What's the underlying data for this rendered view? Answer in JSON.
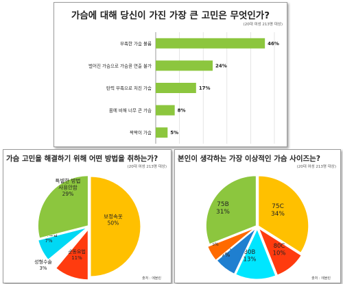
{
  "chart_data": [
    {
      "type": "bar",
      "orientation": "horizontal",
      "title": "가슴에 대해 당신이 가진 가장 큰 고민은 무엇인가?",
      "subtitle": "(20대 여성 213명 대상)",
      "categories": [
        "부족한 가슴 볼륨",
        "벌어진 가슴으로 가슴골 연출 불가",
        "탄력 부족으로 처진 가슴",
        "몸에 비해 너무 큰 가슴",
        "짝짝이 가슴"
      ],
      "value_labels": [
        "46%",
        "24%",
        "17%",
        "8%",
        "5%"
      ],
      "values": [
        46,
        24,
        17,
        8,
        5
      ],
      "xlim": [
        0,
        50
      ],
      "grid": true,
      "colors": {
        "bar": "#8cc63e"
      }
    },
    {
      "type": "pie",
      "title": "가슴 고민을 해결하기 위해 어떤 방법을 취하는가?",
      "subtitle": "(20대 여성 213명 대상)",
      "source": "출처 : 에블린",
      "slices": [
        {
          "label": "보정속옷",
          "pct_label": "50%",
          "value": 50,
          "color": "#ffc000"
        },
        {
          "label": "운동요법",
          "pct_label": "11%",
          "value": 11,
          "color": "#ff3b0f"
        },
        {
          "label": "성형수술",
          "pct_label": "3%",
          "value": 3,
          "color": "#ffffff"
        },
        {
          "label": "식이요법",
          "pct_label": "7%",
          "value": 7,
          "color": "#00d8f4"
        },
        {
          "label_lines": [
            "특별한 방법",
            "사용안함"
          ],
          "pct_label": "29%",
          "value": 29,
          "color": "#8cc63e"
        }
      ]
    },
    {
      "type": "pie",
      "title": "본인이 생각하는 가장 이상적인 가슴 사이즈는?",
      "subtitle": "(20대 여성 213명 대상)",
      "source": "출처 : 에블린",
      "slices": [
        {
          "label": "75C",
          "pct_label": "34%",
          "value": 34,
          "color": "#ffc000"
        },
        {
          "label": "80C",
          "pct_label": "10%",
          "value": 10,
          "color": "#ff3b0f"
        },
        {
          "label": "80B",
          "pct_label": "13%",
          "value": 13,
          "color": "#00e6ff"
        },
        {
          "label": "80A",
          "pct_label": "7%",
          "value": 7,
          "color": "#1f7fd0"
        },
        {
          "label": "75A",
          "pct_label": "5%",
          "value": 5,
          "color": "#ff6a00"
        },
        {
          "label": "75B",
          "pct_label": "31%",
          "value": 31,
          "color": "#8cc63e"
        }
      ]
    }
  ]
}
